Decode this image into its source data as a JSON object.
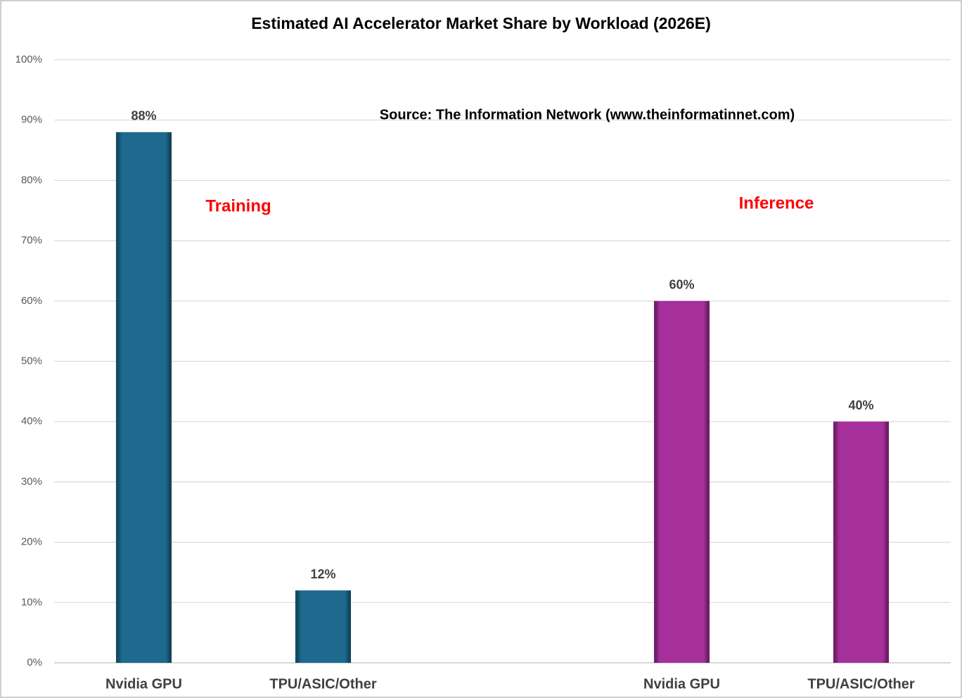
{
  "chart_data": {
    "type": "bar",
    "title": "Estimated AI Accelerator Market Share by Workload (2026E)",
    "annotations": [
      "Source: The Information Network (www.theinformatinnet.com)",
      "Training",
      "Inference"
    ],
    "annotation_colors": [
      "#000000",
      "#ff0000",
      "#ff0000"
    ],
    "categories": [
      "Nvidia GPU",
      "TPU/ASIC/Other",
      null,
      "Nvidia GPU",
      "TPU/ASIC/Other"
    ],
    "values": [
      88,
      12,
      null,
      60,
      40
    ],
    "value_labels": [
      "88%",
      "12%",
      null,
      "60%",
      "40%"
    ],
    "colors": [
      "#1d6a8e",
      "#1d6a8e",
      null,
      "#a52f9b",
      "#a52f9b"
    ],
    "ylim": [
      0,
      100
    ],
    "yticks": [
      {
        "value": 0,
        "label": "0%"
      },
      {
        "value": 10,
        "label": "10%"
      },
      {
        "value": 20,
        "label": "20%"
      },
      {
        "value": 30,
        "label": "30%"
      },
      {
        "value": 40,
        "label": "40%"
      },
      {
        "value": 50,
        "label": "50%"
      },
      {
        "value": 60,
        "label": "60%"
      },
      {
        "value": 70,
        "label": "70%"
      },
      {
        "value": 80,
        "label": "80%"
      },
      {
        "value": 90,
        "label": "90%"
      },
      {
        "value": 100,
        "label": "100%"
      }
    ],
    "grid": true
  }
}
